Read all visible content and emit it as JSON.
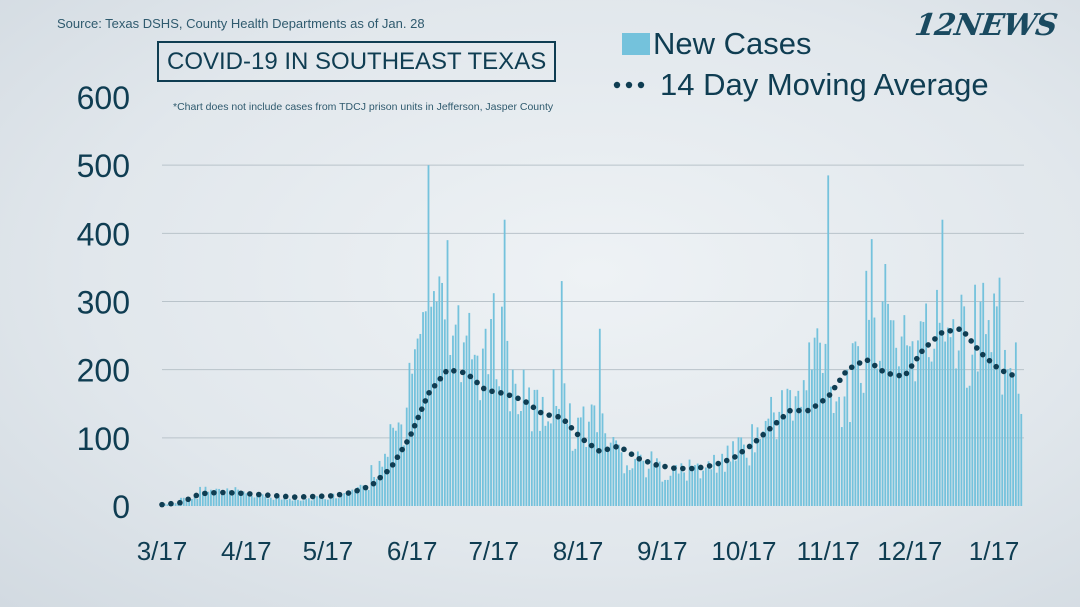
{
  "header": {
    "source": "Source: Texas DSHS, County Health Departments as of Jan. 28",
    "title": "COVID-19 IN SOUTHEAST TEXAS",
    "footnote": "*Chart does not include cases from TDCJ prison units in Jefferson, Jasper County",
    "logo": "12NEWS"
  },
  "legend": {
    "bars_label": "New Cases",
    "line_label": "14 Day Moving Average"
  },
  "colors": {
    "bar": "#74c2dc",
    "line": "#0f3d52",
    "axis_text": "#0f3d52",
    "grid": "#b9c3ca"
  },
  "chart_data": {
    "type": "bar",
    "xlabel": "",
    "ylabel": "",
    "ylim": [
      0,
      600
    ],
    "yticks": [
      0,
      100,
      200,
      300,
      400,
      500,
      600
    ],
    "xticks": [
      "3/17",
      "4/17",
      "5/17",
      "6/17",
      "7/17",
      "8/17",
      "9/17",
      "10/17",
      "11/17",
      "12/17",
      "1/17"
    ],
    "grid": true,
    "legend_position": "top-right",
    "series": [
      {
        "name": "New Cases",
        "type": "bar",
        "x": [
          "3/17",
          "3/24",
          "3/31",
          "4/7",
          "4/14",
          "4/21",
          "4/28",
          "5/5",
          "5/12",
          "5/19",
          "5/26",
          "6/2",
          "6/9",
          "6/16",
          "6/23",
          "6/26",
          "6/30",
          "7/7",
          "7/14",
          "7/21",
          "7/24",
          "7/28",
          "8/4",
          "8/11",
          "8/12",
          "8/18",
          "8/25",
          "9/1",
          "9/8",
          "9/15",
          "9/22",
          "9/29",
          "10/6",
          "10/13",
          "10/20",
          "10/27",
          "11/3",
          "11/10",
          "11/17",
          "11/21",
          "11/24",
          "12/1",
          "12/8",
          "12/15",
          "12/22",
          "12/29",
          "1/5",
          "1/12",
          "1/19",
          "1/25",
          "1/27"
        ],
        "values": [
          3,
          12,
          28,
          25,
          24,
          18,
          15,
          12,
          14,
          18,
          24,
          60,
          120,
          210,
          500,
          300,
          390,
          250,
          260,
          420,
          200,
          200,
          160,
          330,
          180,
          130,
          260,
          90,
          80,
          70,
          60,
          60,
          75,
          95,
          120,
          160,
          170,
          240,
          485,
          160,
          200,
          345,
          355,
          280,
          270,
          420,
          310,
          300,
          335,
          240,
          135
        ]
      },
      {
        "name": "14 Day Moving Average",
        "type": "line",
        "x": [
          "3/17",
          "3/24",
          "3/31",
          "4/7",
          "4/14",
          "4/21",
          "4/28",
          "5/5",
          "5/12",
          "5/19",
          "5/26",
          "6/2",
          "6/9",
          "6/16",
          "6/23",
          "6/30",
          "7/7",
          "7/14",
          "7/21",
          "7/28",
          "8/4",
          "8/11",
          "8/18",
          "8/25",
          "9/1",
          "9/8",
          "9/15",
          "9/22",
          "9/29",
          "10/6",
          "10/13",
          "10/20",
          "10/27",
          "11/3",
          "11/10",
          "11/17",
          "11/24",
          "12/1",
          "12/8",
          "12/15",
          "12/22",
          "12/29",
          "1/5",
          "1/12",
          "1/19",
          "1/25"
        ],
        "values": [
          2,
          5,
          18,
          20,
          19,
          17,
          15,
          13,
          14,
          15,
          20,
          30,
          55,
          100,
          165,
          200,
          195,
          170,
          165,
          155,
          135,
          130,
          100,
          80,
          88,
          70,
          60,
          55,
          55,
          60,
          70,
          90,
          115,
          140,
          140,
          160,
          200,
          215,
          195,
          190,
          230,
          255,
          260,
          225,
          200,
          190
        ]
      }
    ]
  }
}
